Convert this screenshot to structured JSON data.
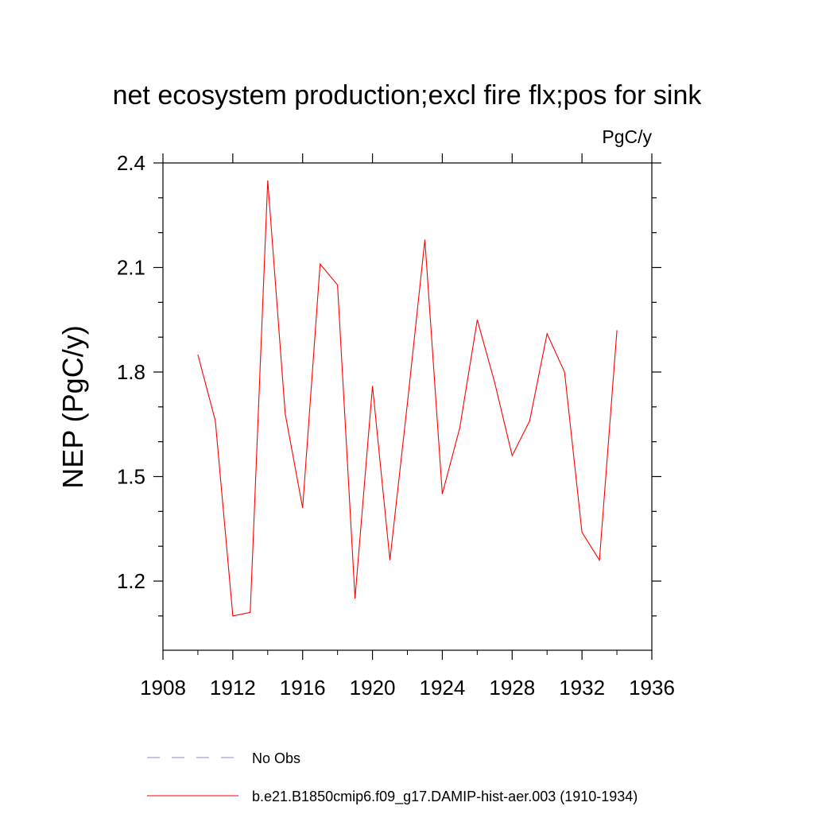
{
  "chart_data": {
    "type": "line",
    "title": "net ecosystem production;excl fire flx;pos for sink",
    "units_label": "PgC/y",
    "xlabel": "",
    "ylabel": "NEP  (PgC/y)",
    "xlim": [
      1908,
      1936
    ],
    "ylim": [
      1.0,
      2.4
    ],
    "x_ticks": [
      1908,
      1912,
      1916,
      1920,
      1924,
      1928,
      1932,
      1936
    ],
    "x_tick_labels": [
      "1908",
      "1912",
      "1916",
      "1920",
      "1924",
      "1928",
      "1932",
      "1936"
    ],
    "y_ticks": [
      1.2,
      1.5,
      1.8,
      2.1,
      2.4
    ],
    "y_tick_labels": [
      "1.2",
      "1.5",
      "1.8",
      "2.1",
      "2.4"
    ],
    "grid": false,
    "legend_position": "bottom",
    "series": [
      {
        "name": "b.e21.B1850cmip6.f09_g17.DAMIP-hist-aer.003 (1910-1934)",
        "color": "#ff0000",
        "style": "solid",
        "x": [
          1910,
          1911,
          1912,
          1913,
          1914,
          1915,
          1916,
          1917,
          1918,
          1919,
          1920,
          1921,
          1922,
          1923,
          1924,
          1925,
          1926,
          1927,
          1928,
          1929,
          1930,
          1931,
          1932,
          1933,
          1934
        ],
        "y": [
          1.85,
          1.66,
          1.1,
          1.11,
          2.35,
          1.68,
          1.41,
          2.11,
          2.05,
          1.15,
          1.76,
          1.26,
          1.71,
          2.18,
          1.45,
          1.64,
          1.95,
          1.77,
          1.56,
          1.66,
          1.91,
          1.8,
          1.34,
          1.26,
          1.92
        ]
      }
    ],
    "legend": [
      {
        "label": "No Obs",
        "color": "#8a87d6",
        "style": "dashed"
      },
      {
        "label": "b.e21.B1850cmip6.f09_g17.DAMIP-hist-aer.003 (1910-1934)",
        "color": "#ff0000",
        "style": "solid"
      }
    ]
  }
}
